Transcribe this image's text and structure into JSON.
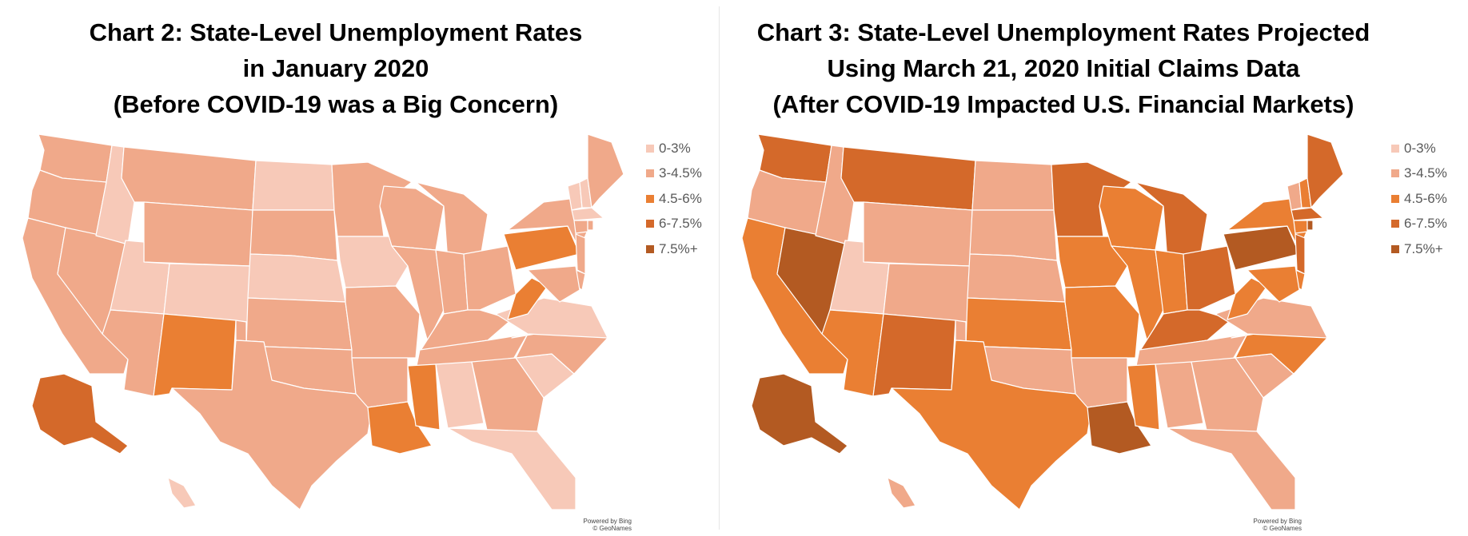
{
  "colors": {
    "0-3%": "#f7c9b8",
    "3-4.5%": "#f0a98a",
    "4.5-6%": "#ea7f33",
    "6-7.5%": "#d4692a",
    "7.5%+": "#b35a22"
  },
  "legend": [
    {
      "label": "0-3%",
      "color": "#f7c9b8"
    },
    {
      "label": "3-4.5%",
      "color": "#f0a98a"
    },
    {
      "label": "4.5-6%",
      "color": "#ea7f33"
    },
    {
      "label": "6-7.5%",
      "color": "#d4692a"
    },
    {
      "label": "7.5%+",
      "color": "#b35a22"
    }
  ],
  "maps": [
    {
      "title_lines": [
        "Chart 2: State-Level Unemployment Rates",
        "in January 2020",
        "(Before COVID-19 was a Big Concern)"
      ],
      "credit_lines": [
        "Powered by Bing",
        "© GeoNames"
      ],
      "states": {
        "WA": "3-4.5%",
        "OR": "3-4.5%",
        "CA": "3-4.5%",
        "NV": "3-4.5%",
        "ID": "0-3%",
        "MT": "3-4.5%",
        "WY": "3-4.5%",
        "UT": "0-3%",
        "CO": "0-3%",
        "AZ": "3-4.5%",
        "NM": "4.5-6%",
        "ND": "0-3%",
        "SD": "3-4.5%",
        "NE": "0-3%",
        "KS": "3-4.5%",
        "OK": "3-4.5%",
        "TX": "3-4.5%",
        "MN": "3-4.5%",
        "IA": "0-3%",
        "MO": "3-4.5%",
        "AR": "3-4.5%",
        "LA": "4.5-6%",
        "WI": "3-4.5%",
        "IL": "3-4.5%",
        "MI": "3-4.5%",
        "IN": "3-4.5%",
        "OH": "3-4.5%",
        "KY": "3-4.5%",
        "TN": "3-4.5%",
        "MS": "4.5-6%",
        "AL": "0-3%",
        "GA": "3-4.5%",
        "FL": "0-3%",
        "SC": "0-3%",
        "NC": "3-4.5%",
        "VA": "0-3%",
        "WV": "4.5-6%",
        "PA": "4.5-6%",
        "NY": "3-4.5%",
        "VT": "0-3%",
        "NH": "0-3%",
        "ME": "3-4.5%",
        "MA": "0-3%",
        "CT": "3-4.5%",
        "RI": "3-4.5%",
        "NJ": "3-4.5%",
        "DE": "3-4.5%",
        "MD": "3-4.5%",
        "AK": "6-7.5%",
        "HI": "0-3%"
      }
    },
    {
      "title_lines": [
        "Chart 3: State-Level Unemployment Rates Projected",
        "Using March 21, 2020 Initial Claims Data",
        "(After COVID-19 Impacted U.S. Financial Markets)"
      ],
      "credit_lines": [
        "Powered by Bing",
        "© GeoNames"
      ],
      "states": {
        "WA": "6-7.5%",
        "OR": "3-4.5%",
        "CA": "4.5-6%",
        "NV": "7.5%+",
        "ID": "3-4.5%",
        "MT": "6-7.5%",
        "WY": "3-4.5%",
        "UT": "0-3%",
        "CO": "3-4.5%",
        "AZ": "4.5-6%",
        "NM": "6-7.5%",
        "ND": "3-4.5%",
        "SD": "3-4.5%",
        "NE": "3-4.5%",
        "KS": "4.5-6%",
        "OK": "3-4.5%",
        "TX": "4.5-6%",
        "MN": "6-7.5%",
        "IA": "4.5-6%",
        "MO": "4.5-6%",
        "AR": "3-4.5%",
        "LA": "7.5%+",
        "WI": "4.5-6%",
        "IL": "4.5-6%",
        "MI": "6-7.5%",
        "IN": "4.5-6%",
        "OH": "6-7.5%",
        "KY": "6-7.5%",
        "TN": "3-4.5%",
        "MS": "4.5-6%",
        "AL": "3-4.5%",
        "GA": "3-4.5%",
        "FL": "3-4.5%",
        "SC": "3-4.5%",
        "NC": "4.5-6%",
        "VA": "3-4.5%",
        "WV": "4.5-6%",
        "PA": "7.5%+",
        "NY": "4.5-6%",
        "VT": "3-4.5%",
        "NH": "4.5-6%",
        "ME": "6-7.5%",
        "MA": "6-7.5%",
        "CT": "4.5-6%",
        "RI": "7.5%+",
        "NJ": "6-7.5%",
        "DE": "4.5-6%",
        "MD": "4.5-6%",
        "AK": "7.5%+",
        "HI": "3-4.5%"
      }
    }
  ]
}
